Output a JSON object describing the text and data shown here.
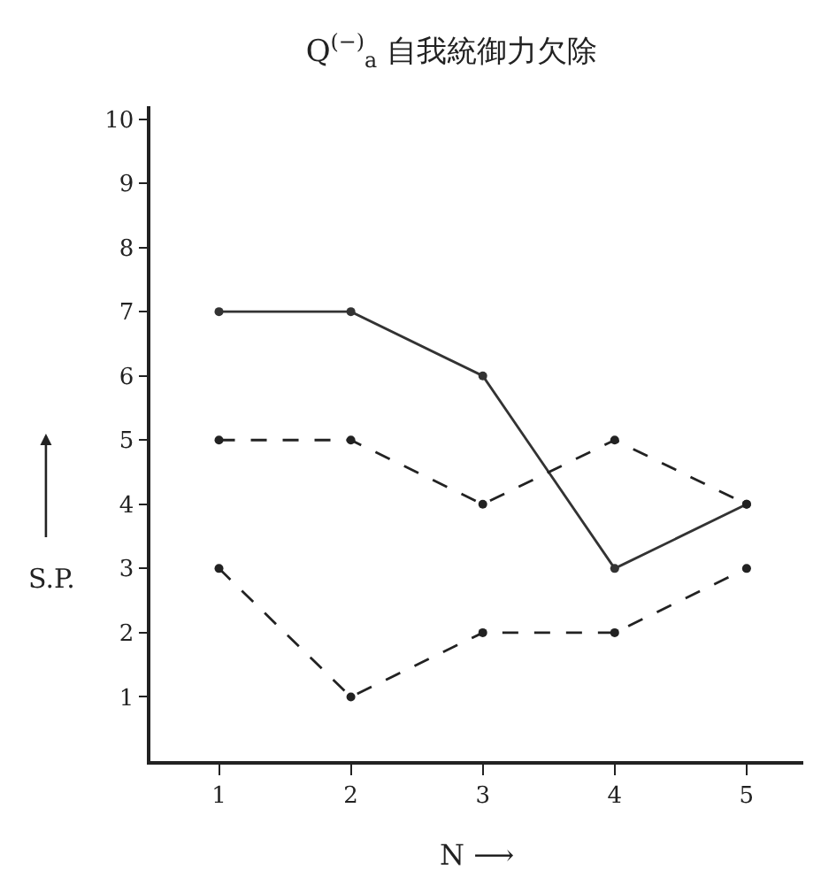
{
  "chart_data": {
    "type": "line",
    "title": "Q$^{(−)}$$_{a}$ 自我統御力欠除",
    "xlabel": "N ⟶",
    "ylabel": "S.P.",
    "x": [
      1,
      2,
      3,
      4,
      5
    ],
    "series": [
      {
        "color": "#333333",
        "values": [
          7,
          7,
          6,
          3,
          4
        ],
        "line_style": "solid"
      },
      {
        "color": "#222222",
        "values": [
          5,
          5,
          4,
          5,
          4
        ],
        "line_style": "dashed"
      },
      {
        "color": "#222222",
        "values": [
          3,
          1,
          2,
          2,
          3
        ],
        "line_style": "dashed"
      }
    ],
    "xlim": [
      0.48,
      5.43
    ],
    "xticks": [
      1,
      2,
      3,
      4,
      5
    ],
    "ylim": [
      0,
      10.2
    ],
    "yticks": [
      1,
      2,
      3,
      4,
      5,
      6,
      7,
      8,
      9,
      10
    ],
    "marker": "circle",
    "grid": false
  }
}
